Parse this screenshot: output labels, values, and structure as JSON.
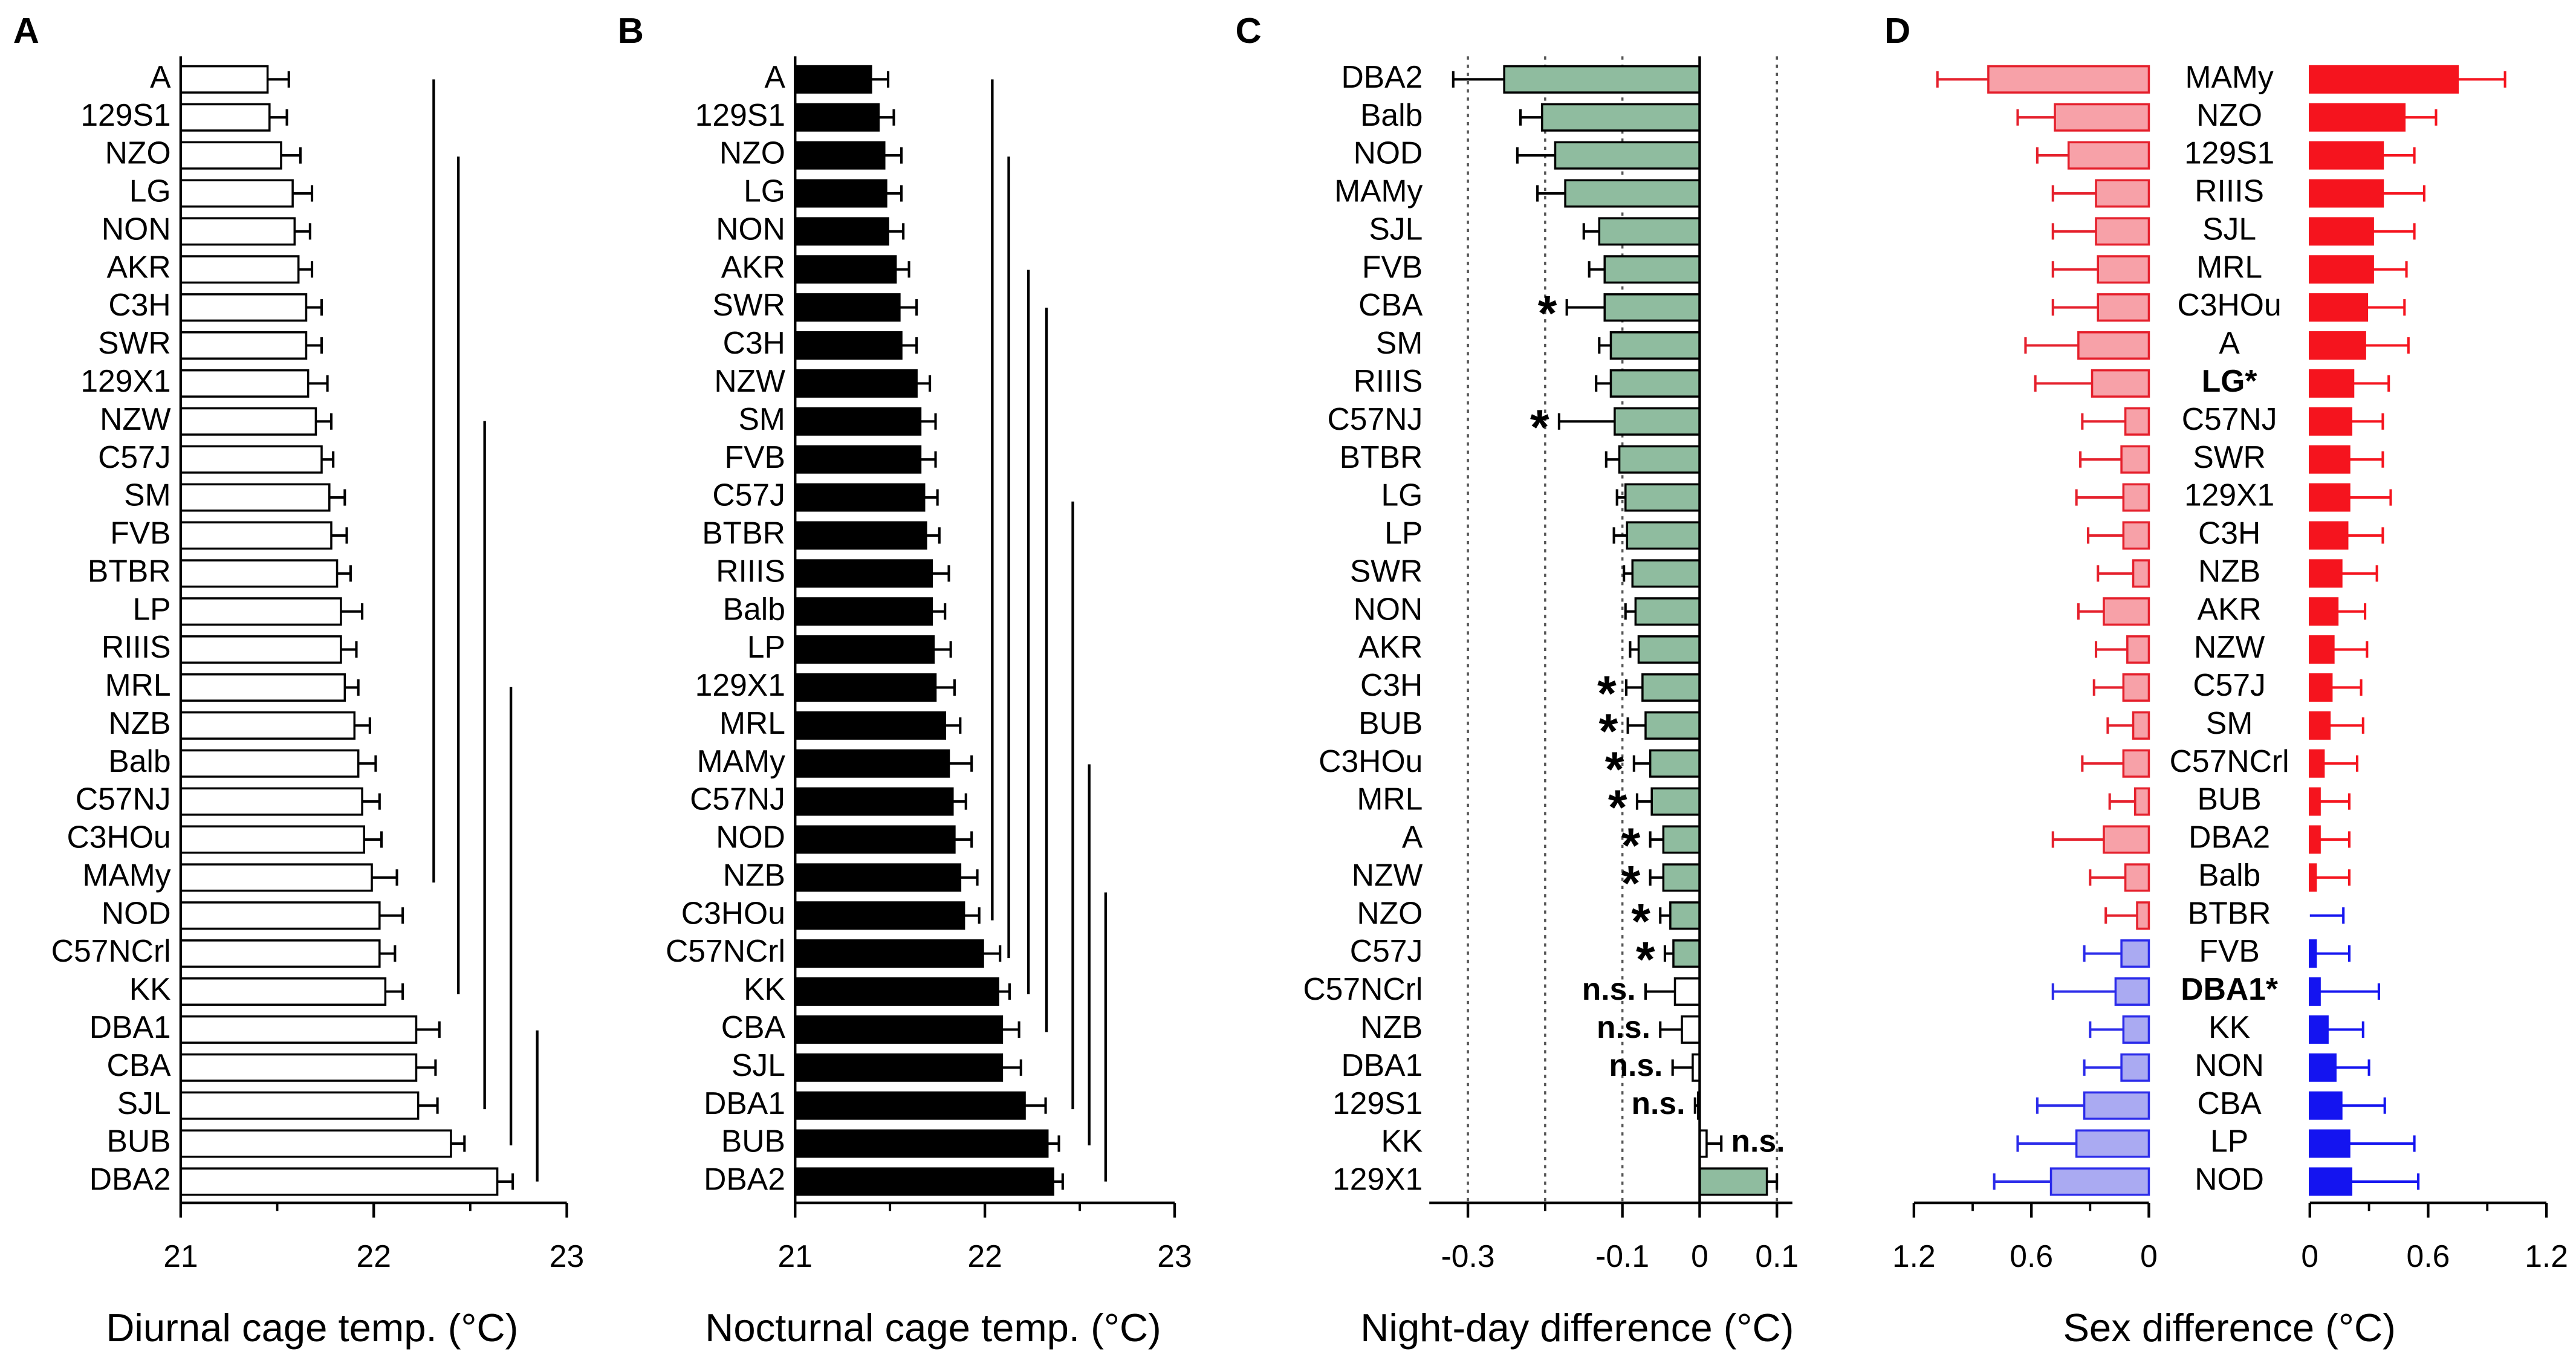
{
  "chart_data": [
    {
      "type": "bar",
      "label": "A",
      "xlabel": "Diurnal cage temp. (°C)",
      "categories": [
        "A",
        "129S1",
        "NZO",
        "LG",
        "NON",
        "AKR",
        "C3H",
        "SWR",
        "129X1",
        "NZW",
        "C57J",
        "SM",
        "FVB",
        "BTBR",
        "LP",
        "RIIIS",
        "MRL",
        "NZB",
        "Balb",
        "C57NJ",
        "C3HOu",
        "MAMy",
        "NOD",
        "C57NCrl",
        "KK",
        "DBA1",
        "CBA",
        "SJL",
        "BUB",
        "DBA2"
      ],
      "values": [
        21.45,
        21.46,
        21.52,
        21.58,
        21.59,
        21.61,
        21.65,
        21.65,
        21.66,
        21.7,
        21.73,
        21.77,
        21.78,
        21.81,
        21.83,
        21.83,
        21.85,
        21.9,
        21.92,
        21.94,
        21.95,
        21.99,
        22.03,
        22.03,
        22.06,
        22.22,
        22.22,
        22.23,
        22.4,
        22.64
      ],
      "errors": [
        0.11,
        0.09,
        0.1,
        0.1,
        0.08,
        0.07,
        0.08,
        0.08,
        0.1,
        0.08,
        0.06,
        0.08,
        0.08,
        0.07,
        0.11,
        0.08,
        0.07,
        0.08,
        0.09,
        0.09,
        0.09,
        0.13,
        0.12,
        0.08,
        0.09,
        0.12,
        0.1,
        0.1,
        0.07,
        0.08
      ],
      "color": "#ffffff",
      "edgecolor": "#000000",
      "xlim": [
        21,
        23
      ],
      "xticks": [
        21,
        22,
        23
      ],
      "minor_xticks": [
        21.5,
        22.5
      ]
    },
    {
      "type": "bar",
      "label": "B",
      "xlabel": "Nocturnal cage temp. (°C)",
      "categories": [
        "A",
        "129S1",
        "NZO",
        "LG",
        "NON",
        "AKR",
        "SWR",
        "C3H",
        "NZW",
        "SM",
        "FVB",
        "C57J",
        "BTBR",
        "RIIIS",
        "Balb",
        "LP",
        "129X1",
        "MRL",
        "MAMy",
        "C57NJ",
        "NOD",
        "NZB",
        "C3HOu",
        "C57NCrl",
        "KK",
        "CBA",
        "SJL",
        "DBA1",
        "BUB",
        "DBA2"
      ],
      "values": [
        21.4,
        21.44,
        21.47,
        21.48,
        21.49,
        21.53,
        21.55,
        21.56,
        21.64,
        21.66,
        21.66,
        21.68,
        21.69,
        21.72,
        21.72,
        21.73,
        21.74,
        21.79,
        21.81,
        21.83,
        21.84,
        21.87,
        21.89,
        21.99,
        22.07,
        22.09,
        22.09,
        22.21,
        22.33,
        22.36
      ],
      "errors": [
        0.09,
        0.08,
        0.09,
        0.08,
        0.08,
        0.07,
        0.09,
        0.08,
        0.07,
        0.08,
        0.08,
        0.07,
        0.07,
        0.09,
        0.07,
        0.09,
        0.1,
        0.08,
        0.12,
        0.07,
        0.09,
        0.09,
        0.08,
        0.09,
        0.06,
        0.09,
        0.1,
        0.11,
        0.06,
        0.05
      ],
      "color": "#000000",
      "edgecolor": "#000000",
      "xlim": [
        21,
        23
      ],
      "xticks": [
        21,
        22,
        23
      ],
      "minor_xticks": [
        21.5,
        22.5
      ]
    },
    {
      "type": "bar",
      "label": "C",
      "xlabel": "Night-day difference (°C)",
      "categories": [
        "DBA2",
        "Balb",
        "NOD",
        "MAMy",
        "SJL",
        "FVB",
        "CBA",
        "SM",
        "RIIIS",
        "C57NJ",
        "BTBR",
        "LG",
        "LP",
        "SWR",
        "NON",
        "AKR",
        "C3H",
        "BUB",
        "C3HOu",
        "MRL",
        "A",
        "NZW",
        "NZO",
        "C57J",
        "C57NCrl",
        "NZB",
        "DBA1",
        "129S1",
        "KK",
        "129X1"
      ],
      "values": [
        -0.253,
        -0.204,
        -0.187,
        -0.174,
        -0.13,
        -0.123,
        -0.123,
        -0.115,
        -0.115,
        -0.11,
        -0.104,
        -0.096,
        -0.094,
        -0.087,
        -0.083,
        -0.079,
        -0.074,
        -0.07,
        -0.064,
        -0.062,
        -0.047,
        -0.047,
        -0.038,
        -0.034,
        -0.032,
        -0.023,
        -0.009,
        -0.002,
        0.009,
        0.087
      ],
      "errors": [
        0.066,
        0.028,
        0.049,
        0.036,
        0.02,
        0.02,
        0.049,
        0.015,
        0.019,
        0.072,
        0.017,
        0.011,
        0.017,
        0.011,
        0.013,
        0.011,
        0.021,
        0.023,
        0.021,
        0.019,
        0.017,
        0.017,
        0.013,
        0.011,
        0.038,
        0.028,
        0.026,
        0.004,
        0.019,
        0.013
      ],
      "colors": [
        "#8fbc9f",
        "#8fbc9f",
        "#8fbc9f",
        "#8fbc9f",
        "#8fbc9f",
        "#8fbc9f",
        "#8fbc9f",
        "#8fbc9f",
        "#8fbc9f",
        "#8fbc9f",
        "#8fbc9f",
        "#8fbc9f",
        "#8fbc9f",
        "#8fbc9f",
        "#8fbc9f",
        "#8fbc9f",
        "#8fbc9f",
        "#8fbc9f",
        "#8fbc9f",
        "#8fbc9f",
        "#8fbc9f",
        "#8fbc9f",
        "#8fbc9f",
        "#8fbc9f",
        "#ffffff",
        "#ffffff",
        "#ffffff",
        "#ffffff",
        "#ffffff",
        "#8fbc9f"
      ],
      "edgecolor": "#000000",
      "annotations": [
        null,
        null,
        null,
        null,
        null,
        null,
        "*",
        null,
        null,
        "*",
        null,
        null,
        null,
        null,
        null,
        null,
        "*",
        "*",
        "*",
        "*",
        "*",
        "*",
        "*",
        "*",
        "n.s.",
        "n.s.",
        "n.s.",
        "n.s.",
        "n.s.",
        null
      ],
      "xlim": [
        -0.35,
        0.12
      ],
      "xticks": [
        -0.3,
        -0.1,
        0,
        0.1
      ],
      "minor_xticks": [
        -0.2
      ],
      "grid_lines": [
        -0.3,
        -0.2,
        -0.1,
        0.1
      ]
    },
    {
      "type": "butterfly",
      "label": "D",
      "xlabel": "Sex difference (°C)",
      "categories": [
        "MAMy",
        "NZO",
        "129S1",
        "RIIIS",
        "SJL",
        "MRL",
        "C3HOu",
        "A",
        "LG*",
        "C57NJ",
        "SWR",
        "129X1",
        "C3H",
        "NZB",
        "AKR",
        "NZW",
        "C57J",
        "SM",
        "C57NCrl",
        "BUB",
        "DBA2",
        "Balb",
        "BTBR",
        "FVB",
        "DBA1*",
        "KK",
        "NON",
        "CBA",
        "LP",
        "NOD"
      ],
      "bold": [
        8,
        24
      ],
      "series": [
        {
          "values": [
            0.82,
            0.48,
            0.41,
            0.27,
            0.27,
            0.26,
            0.26,
            0.36,
            0.29,
            0.12,
            0.14,
            0.13,
            0.13,
            0.08,
            0.23,
            0.11,
            0.13,
            0.08,
            0.13,
            0.07,
            0.23,
            0.12,
            0.06,
            0.14,
            0.17,
            0.13,
            0.14,
            0.33,
            0.37,
            0.5
          ],
          "errors": [
            0.26,
            0.19,
            0.16,
            0.22,
            0.22,
            0.23,
            0.23,
            0.27,
            0.29,
            0.22,
            0.21,
            0.24,
            0.18,
            0.18,
            0.13,
            0.16,
            0.15,
            0.13,
            0.21,
            0.13,
            0.26,
            0.18,
            0.16,
            0.19,
            0.32,
            0.17,
            0.19,
            0.24,
            0.3,
            0.29
          ],
          "colors": [
            "#f7a1a8",
            "#f7a1a8",
            "#f7a1a8",
            "#f7a1a8",
            "#f7a1a8",
            "#f7a1a8",
            "#f7a1a8",
            "#f7a1a8",
            "#f7a1a8",
            "#f7a1a8",
            "#f7a1a8",
            "#f7a1a8",
            "#f7a1a8",
            "#f7a1a8",
            "#f7a1a8",
            "#f7a1a8",
            "#f7a1a8",
            "#f7a1a8",
            "#f7a1a8",
            "#f7a1a8",
            "#f7a1a8",
            "#f7a1a8",
            "#f7a1a8",
            "#aaaaf2",
            "#aaaaf2",
            "#aaaaf2",
            "#aaaaf2",
            "#aaaaf2",
            "#aaaaf2",
            "#aaaaf2"
          ],
          "edgecolors": [
            "#e5202c",
            "#e5202c",
            "#e5202c",
            "#e5202c",
            "#e5202c",
            "#e5202c",
            "#e5202c",
            "#e5202c",
            "#e5202c",
            "#e5202c",
            "#e5202c",
            "#e5202c",
            "#e5202c",
            "#e5202c",
            "#e5202c",
            "#e5202c",
            "#e5202c",
            "#e5202c",
            "#e5202c",
            "#e5202c",
            "#e5202c",
            "#e5202c",
            "#e5202c",
            "#2b2bea",
            "#2b2bea",
            "#2b2bea",
            "#2b2bea",
            "#2b2bea",
            "#2b2bea",
            "#2b2bea"
          ]
        },
        {
          "values": [
            0.75,
            0.48,
            0.37,
            0.37,
            0.32,
            0.32,
            0.29,
            0.28,
            0.22,
            0.21,
            0.2,
            0.2,
            0.19,
            0.16,
            0.14,
            0.12,
            0.11,
            0.1,
            0.07,
            0.05,
            0.05,
            0.03,
            0,
            0.03,
            0.05,
            0.09,
            0.13,
            0.16,
            0.2,
            0.21
          ],
          "errors": [
            0.24,
            0.16,
            0.16,
            0.21,
            0.21,
            0.17,
            0.19,
            0.22,
            0.18,
            0.16,
            0.17,
            0.21,
            0.18,
            0.18,
            0.14,
            0.17,
            0.15,
            0.17,
            0.17,
            0.15,
            0.15,
            0.17,
            0.17,
            0.17,
            0.3,
            0.18,
            0.17,
            0.22,
            0.33,
            0.34
          ],
          "colors": [
            "#f5141e",
            "#f5141e",
            "#f5141e",
            "#f5141e",
            "#f5141e",
            "#f5141e",
            "#f5141e",
            "#f5141e",
            "#f5141e",
            "#f5141e",
            "#f5141e",
            "#f5141e",
            "#f5141e",
            "#f5141e",
            "#f5141e",
            "#f5141e",
            "#f5141e",
            "#f5141e",
            "#f5141e",
            "#f5141e",
            "#f5141e",
            "#f5141e",
            "#1414f0",
            "#1414f0",
            "#1414f0",
            "#1414f0",
            "#1414f0",
            "#1414f0",
            "#1414f0",
            "#1414f0"
          ],
          "edgecolors": [
            "#f5141e",
            "#f5141e",
            "#f5141e",
            "#f5141e",
            "#f5141e",
            "#f5141e",
            "#f5141e",
            "#f5141e",
            "#f5141e",
            "#f5141e",
            "#f5141e",
            "#f5141e",
            "#f5141e",
            "#f5141e",
            "#f5141e",
            "#f5141e",
            "#f5141e",
            "#f5141e",
            "#f5141e",
            "#f5141e",
            "#f5141e",
            "#f5141e",
            "#1414f0",
            "#1414f0",
            "#1414f0",
            "#1414f0",
            "#1414f0",
            "#1414f0",
            "#1414f0",
            "#1414f0"
          ]
        }
      ],
      "xlim": [
        0,
        1.2
      ],
      "xticks": [
        0,
        0.6,
        1.2
      ],
      "minor_xticks": [
        0.3,
        0.9
      ]
    }
  ]
}
